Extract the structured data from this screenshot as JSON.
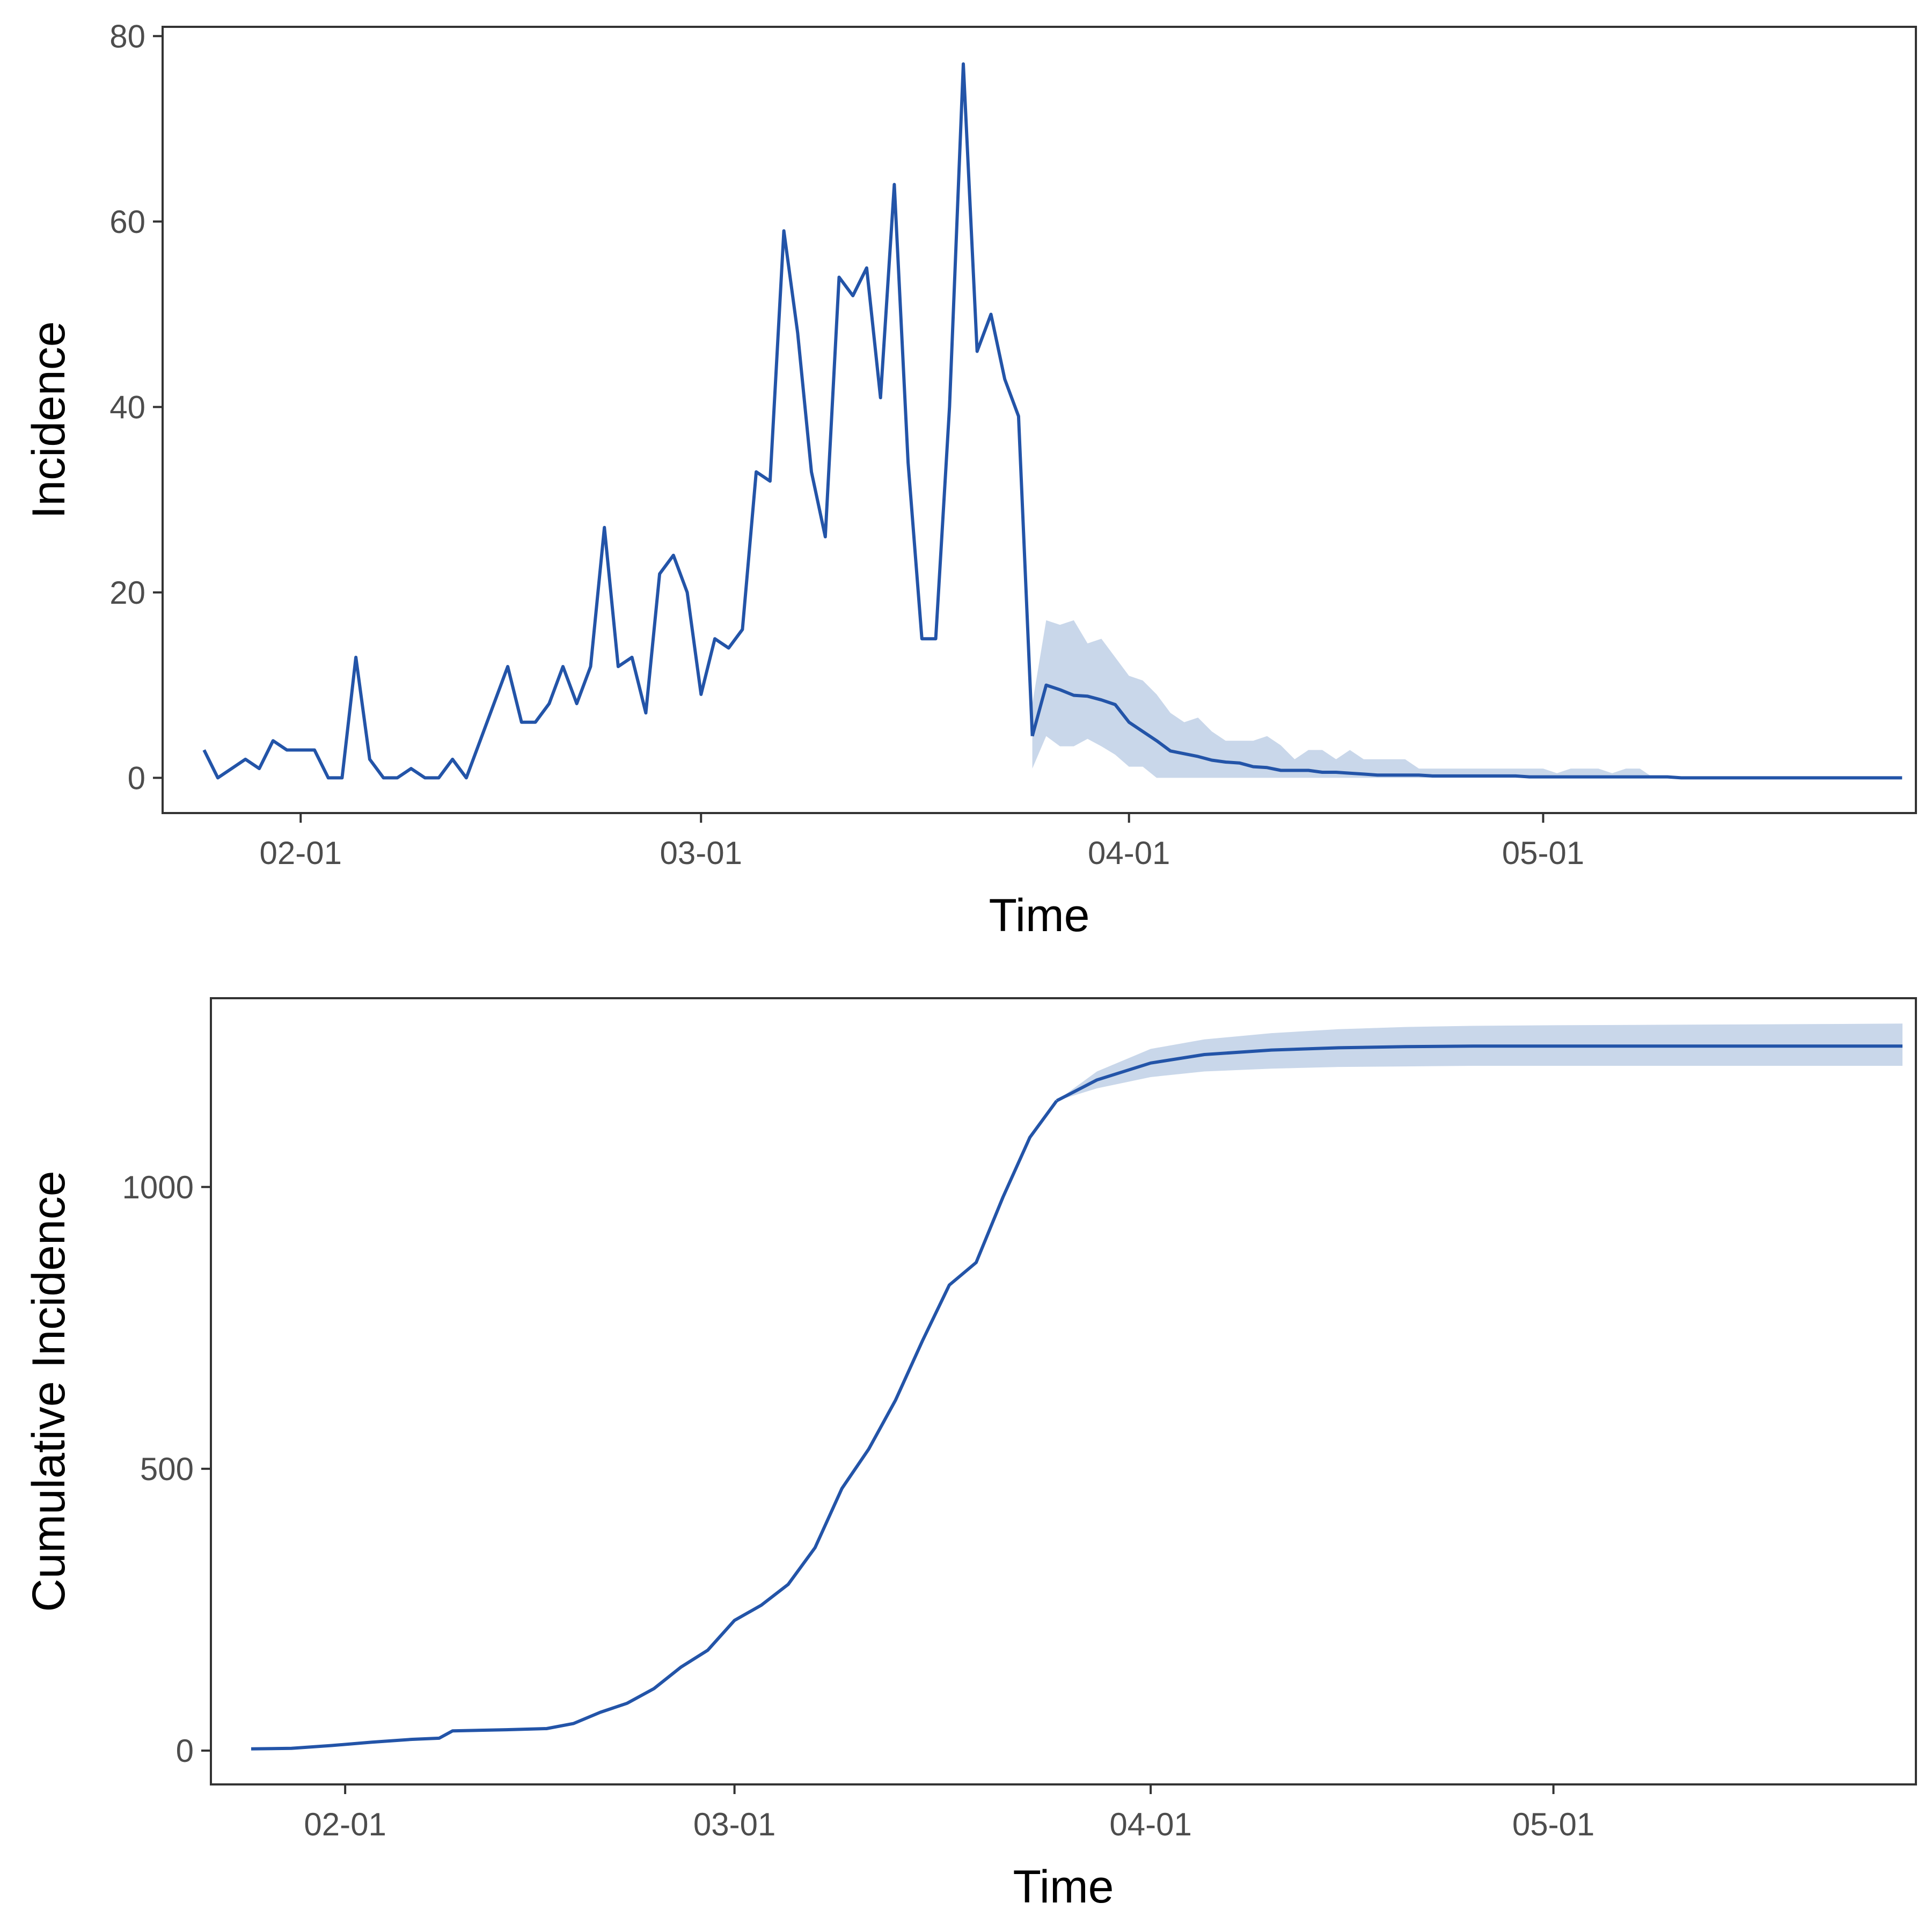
{
  "colors": {
    "line": "#2354a8",
    "band": "#c9d7ea",
    "frame": "#333333",
    "ticktext": "#4d4d4d"
  },
  "chart_data": [
    {
      "id": "incidence",
      "type": "line",
      "xlabel": "Time",
      "ylabel": "Incidence",
      "xlim": [
        "01-22",
        "05-28"
      ],
      "ylim": [
        -3.8,
        81
      ],
      "y_ticks": [
        0,
        20,
        40,
        60,
        80
      ],
      "x_ticks": [
        {
          "date": "02-01",
          "label": "02-01"
        },
        {
          "date": "03-01",
          "label": "03-01"
        },
        {
          "date": "04-01",
          "label": "04-01"
        },
        {
          "date": "05-01",
          "label": "05-01"
        }
      ],
      "grid": false,
      "legend": "none",
      "series": [
        {
          "x": [
            "01-25",
            "01-26",
            "01-27",
            "01-28",
            "01-29",
            "01-30",
            "01-31",
            "02-01",
            "02-02",
            "02-03",
            "02-04",
            "02-05",
            "02-06",
            "02-07",
            "02-08",
            "02-09",
            "02-10",
            "02-11",
            "02-12",
            "02-13",
            "02-14",
            "02-15",
            "02-16",
            "02-17",
            "02-18",
            "02-19",
            "02-20",
            "02-21",
            "02-22",
            "02-23",
            "02-24",
            "02-25",
            "02-26",
            "02-27",
            "02-28",
            "02-29",
            "03-01",
            "03-02",
            "03-03",
            "03-04",
            "03-05",
            "03-06",
            "03-07",
            "03-08",
            "03-09",
            "03-10",
            "03-11",
            "03-12",
            "03-13",
            "03-14",
            "03-15",
            "03-16",
            "03-17",
            "03-18",
            "03-19",
            "03-20",
            "03-21",
            "03-22",
            "03-23",
            "03-24",
            "03-25"
          ],
          "y": [
            3,
            0,
            1,
            2,
            1,
            4,
            3,
            3,
            3,
            0,
            0,
            13,
            2,
            0,
            0,
            1,
            0,
            0,
            2,
            0,
            4,
            8,
            12,
            6,
            6,
            8,
            12,
            8,
            12,
            27,
            12,
            13,
            7,
            22,
            24,
            20,
            9,
            15,
            14,
            16,
            33,
            32,
            59,
            48,
            33,
            26,
            54,
            52,
            55,
            41,
            64,
            34,
            15,
            15,
            40,
            77,
            46,
            50,
            43,
            39,
            4.5
          ]
        },
        {
          "x": [
            "03-25",
            "03-26",
            "03-27",
            "03-28",
            "03-29",
            "03-30",
            "03-31",
            "04-01",
            "04-02",
            "04-03",
            "04-04",
            "04-05",
            "04-06",
            "04-07",
            "04-08",
            "04-09",
            "04-10",
            "04-11",
            "04-12",
            "04-13",
            "04-14",
            "04-15",
            "04-16",
            "04-17",
            "04-18",
            "04-19",
            "04-20",
            "04-21",
            "04-22",
            "04-23",
            "04-24",
            "04-25",
            "04-26",
            "04-27",
            "04-28",
            "04-29",
            "04-30",
            "05-01",
            "05-02",
            "05-03",
            "05-04",
            "05-05",
            "05-06",
            "05-07",
            "05-08",
            "05-09",
            "05-10",
            "05-11",
            "05-12",
            "05-13",
            "05-14",
            "05-15",
            "05-16",
            "05-17",
            "05-18",
            "05-19",
            "05-20",
            "05-21",
            "05-22",
            "05-23",
            "05-24",
            "05-25",
            "05-26",
            "05-27"
          ],
          "y": [
            4.5,
            10,
            9.5,
            8.9,
            8.8,
            8.4,
            7.9,
            6,
            5,
            4,
            2.9,
            2.6,
            2.3,
            1.9,
            1.7,
            1.6,
            1.2,
            1.1,
            0.8,
            0.8,
            0.8,
            0.6,
            0.6,
            0.5,
            0.4,
            0.3,
            0.3,
            0.3,
            0.3,
            0.2,
            0.2,
            0.2,
            0.2,
            0.2,
            0.2,
            0.2,
            0.1,
            0.1,
            0.1,
            0.1,
            0.1,
            0.1,
            0.1,
            0.1,
            0.1,
            0.1,
            0.1,
            0,
            0,
            0,
            0,
            0,
            0,
            0,
            0,
            0,
            0,
            0,
            0,
            0,
            0,
            0,
            0,
            0
          ],
          "lower": [
            1,
            4.5,
            3.4,
            3.4,
            4.2,
            3.4,
            2.5,
            1.2,
            1.2,
            0,
            0,
            0,
            0,
            0,
            0,
            0,
            0,
            0,
            0,
            0,
            0,
            0,
            0,
            0,
            0,
            0,
            0,
            0,
            0,
            0,
            0,
            0,
            0,
            0,
            0,
            0,
            0,
            0,
            0,
            0,
            0,
            0,
            0,
            0,
            0,
            0,
            0,
            0,
            0,
            0,
            0,
            0,
            0,
            0,
            0,
            0,
            0,
            0,
            0,
            0,
            0,
            0,
            0,
            0
          ],
          "upper": [
            8,
            17,
            16.5,
            17,
            14.5,
            15,
            13,
            11,
            10.5,
            9,
            7,
            6,
            6.5,
            5,
            4,
            4,
            4,
            4.5,
            3.5,
            2,
            3,
            3,
            2,
            3,
            2,
            2,
            2,
            2,
            1,
            1,
            1,
            1,
            1,
            1,
            1,
            1,
            1,
            1,
            0.5,
            1,
            1,
            1,
            0.5,
            1,
            1,
            0,
            0,
            0,
            0,
            0,
            0,
            0,
            0,
            0,
            0,
            0,
            0,
            0,
            0,
            0,
            0,
            0,
            0,
            0
          ]
        }
      ]
    },
    {
      "id": "cumulative",
      "type": "line",
      "xlabel": "Time",
      "ylabel": "Cumulative Incidence",
      "xlim": [
        "01-22",
        "05-28"
      ],
      "ylim": [
        -60,
        1335
      ],
      "y_ticks": [
        0,
        500,
        1000
      ],
      "x_ticks": [
        {
          "date": "02-01",
          "label": "02-01"
        },
        {
          "date": "03-01",
          "label": "03-01"
        },
        {
          "date": "04-01",
          "label": "04-01"
        },
        {
          "date": "05-01",
          "label": "05-01"
        }
      ],
      "grid": false,
      "legend": "none",
      "series": [
        {
          "x": [
            "01-25",
            "01-28",
            "01-31",
            "02-03",
            "02-06",
            "02-08",
            "02-09",
            "02-13",
            "02-16",
            "02-18",
            "02-20",
            "02-22",
            "02-24",
            "02-26",
            "02-28",
            "03-01",
            "03-03",
            "03-05",
            "03-07",
            "03-09",
            "03-11",
            "03-13",
            "03-15",
            "03-17",
            "03-19",
            "03-21",
            "03-23",
            "03-25"
          ],
          "y": [
            3,
            4,
            9,
            15,
            20,
            22,
            35,
            37,
            39,
            48,
            68,
            84,
            110,
            148,
            178,
            231,
            258,
            295,
            360,
            465,
            535,
            622,
            727,
            826,
            866,
            982,
            1088,
            1153
          ]
        },
        {
          "x": [
            "03-25",
            "03-28",
            "04-01",
            "04-05",
            "04-10",
            "04-15",
            "04-20",
            "04-25",
            "05-01",
            "05-10",
            "05-20",
            "05-27"
          ],
          "y": [
            1153,
            1190,
            1220,
            1235,
            1243,
            1247,
            1249,
            1250,
            1250,
            1250,
            1250,
            1250
          ],
          "lower": [
            1153,
            1175,
            1195,
            1205,
            1210,
            1213,
            1214,
            1215,
            1215,
            1215,
            1215,
            1215
          ],
          "upper": [
            1153,
            1205,
            1245,
            1262,
            1273,
            1280,
            1284,
            1286,
            1287,
            1288,
            1289,
            1290
          ]
        }
      ]
    }
  ]
}
